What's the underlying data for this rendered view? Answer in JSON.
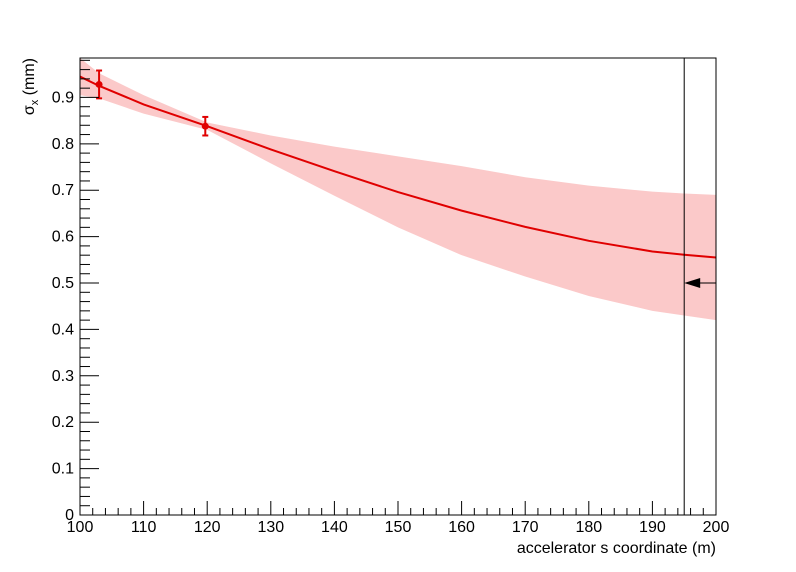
{
  "chart_data": {
    "type": "line",
    "xlabel": "accelerator s coordinate (m)",
    "ylabel": "σ",
    "ylabel_subscript": "x",
    "ylabel_unit": " (mm)",
    "xlim": [
      100,
      200
    ],
    "ylim": [
      0,
      0.985
    ],
    "x_ticks": [
      100,
      110,
      120,
      130,
      140,
      150,
      160,
      170,
      180,
      190,
      200
    ],
    "y_ticks": [
      0,
      0.1,
      0.2,
      0.3,
      0.4,
      0.5,
      0.6,
      0.7,
      0.8,
      0.9
    ],
    "y_tick_labels": [
      "0",
      "0.1",
      "0.2",
      "0.3",
      "0.4",
      "0.5",
      "0.6",
      "0.7",
      "0.8",
      "0.9"
    ],
    "grid": false,
    "series": [
      {
        "kind": "fit_line",
        "color": "#e00000",
        "x": [
          100,
          103,
          110,
          120,
          130,
          140,
          150,
          160,
          170,
          180,
          190,
          195,
          200
        ],
        "y": [
          0.945,
          0.925,
          0.885,
          0.838,
          0.788,
          0.741,
          0.696,
          0.656,
          0.621,
          0.591,
          0.568,
          0.561,
          0.555
        ]
      },
      {
        "kind": "confidence_band",
        "color": "#fbc9c9",
        "x": [
          100,
          103,
          110,
          120,
          130,
          140,
          150,
          160,
          170,
          180,
          190,
          195,
          200
        ],
        "upper": [
          0.985,
          0.952,
          0.905,
          0.846,
          0.818,
          0.794,
          0.773,
          0.752,
          0.728,
          0.71,
          0.697,
          0.693,
          0.69
        ],
        "lower": [
          0.905,
          0.898,
          0.865,
          0.83,
          0.758,
          0.688,
          0.62,
          0.56,
          0.514,
          0.472,
          0.44,
          0.43,
          0.42
        ]
      },
      {
        "kind": "data_points",
        "color": "#e00000",
        "points": [
          {
            "x": 103,
            "y": 0.928,
            "err": 0.03
          },
          {
            "x": 119.7,
            "y": 0.838,
            "err": 0.02
          }
        ]
      }
    ],
    "annotations": {
      "vertical_line_x": 195,
      "arrow": {
        "x_from": 200,
        "x_to": 195,
        "y": 0.5,
        "direction": "left"
      }
    }
  }
}
